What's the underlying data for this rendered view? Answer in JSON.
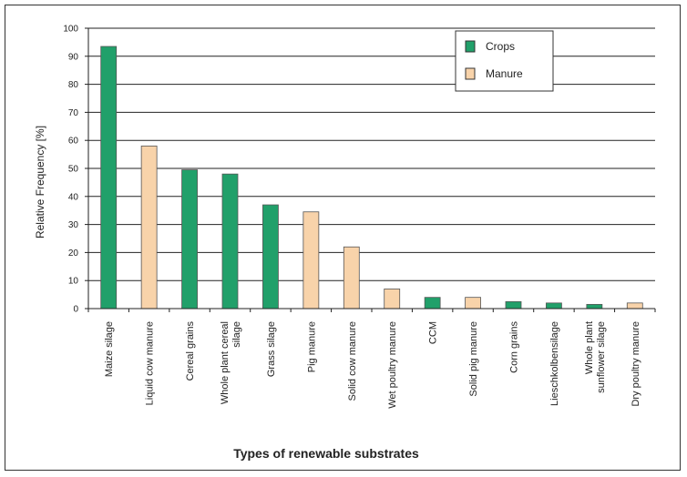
{
  "chart_data": {
    "type": "bar",
    "xlabel": "Types of renewable substrates",
    "ylabel": "Relative Frequency [%]",
    "ylim": [
      0,
      100
    ],
    "yticks": [
      0,
      10,
      20,
      30,
      40,
      50,
      60,
      70,
      80,
      90,
      100
    ],
    "grid": true,
    "legend_position": "top-right",
    "legend": [
      {
        "name": "Crops",
        "color": "#21a06a"
      },
      {
        "name": "Manure",
        "color": "#f8d3aa"
      }
    ],
    "categories": [
      "Maize silage",
      "Liquid cow manure",
      "Cereal grains",
      "Whole plant cereal silage",
      "Grass silage",
      "Pig manure",
      "Solid cow manure",
      "Wet poultry manure",
      "CCM",
      "Solid pig manure",
      "Corn grains",
      "Lieschkolbensilage",
      "Whole plant sunflower silage",
      "Dry poultry manure"
    ],
    "values": [
      93.5,
      58,
      49.5,
      48,
      37,
      34.5,
      22,
      7,
      4,
      4,
      2.5,
      2,
      1.5,
      2
    ],
    "groups": [
      "Crops",
      "Manure",
      "Crops",
      "Crops",
      "Crops",
      "Manure",
      "Manure",
      "Manure",
      "Crops",
      "Manure",
      "Crops",
      "Crops",
      "Crops",
      "Manure"
    ]
  }
}
